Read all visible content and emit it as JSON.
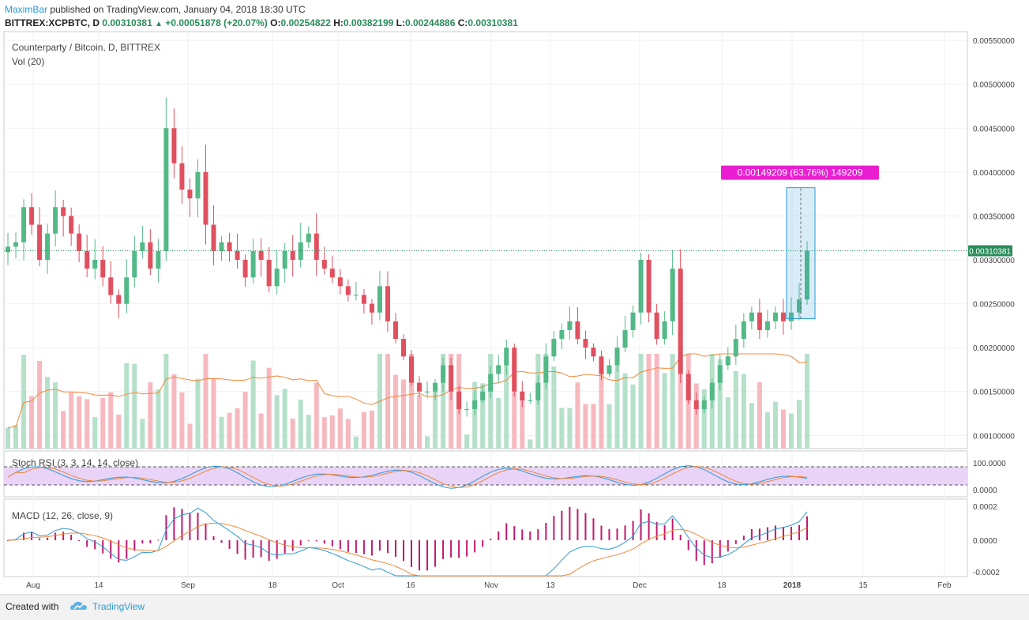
{
  "header": {
    "author": "MaximBar",
    "published": "published on TradingView.com, January 04, 2018 18:30 UTC",
    "symbol": "BITTREX:XCPBTC, D",
    "last": "0.00310381",
    "change": "+0.00051878 (+20.07%)",
    "o_label": "O:",
    "o_value": "0.00254822",
    "h_label": "H:",
    "h_value": "0.00382199",
    "l_label": "L:",
    "l_value": "0.00244886",
    "c_label": "C:",
    "c_value": "0.00310381"
  },
  "chart_data": [
    {
      "type": "candlestick",
      "title": "Counterparty / Bitcoin, D, BITTREX",
      "volume_label": "Vol (20)",
      "x_ticks": [
        "Aug",
        "14",
        "Sep",
        "18",
        "Oct",
        "16",
        "Nov",
        "13",
        "Dec",
        "18",
        "2018",
        "15",
        "Feb"
      ],
      "y_ticks": [
        "0.00550000",
        "0.00500000",
        "0.00450000",
        "0.00400000",
        "0.00350000",
        "0.00300000",
        "0.00250000",
        "0.00200000",
        "0.00150000",
        "0.00100000"
      ],
      "ylim": [
        0.00085,
        0.0056
      ],
      "last_price_label": "0.00310381",
      "measure_label": "0.00149209 (63.76%) 149209",
      "measure_range": [
        0.00233,
        0.00382199
      ],
      "close_series": [
        0.00315,
        0.0032,
        0.0036,
        0.0034,
        0.003,
        0.0033,
        0.0036,
        0.0035,
        0.0033,
        0.0031,
        0.0029,
        0.003,
        0.0028,
        0.0026,
        0.0025,
        0.0028,
        0.0031,
        0.0032,
        0.0029,
        0.0031,
        0.0045,
        0.0041,
        0.0038,
        0.0037,
        0.004,
        0.0034,
        0.0031,
        0.0032,
        0.0031,
        0.003,
        0.0028,
        0.0031,
        0.003,
        0.0027,
        0.0029,
        0.0031,
        0.003,
        0.0032,
        0.0033,
        0.003,
        0.0029,
        0.0028,
        0.0027,
        0.0026,
        0.0026,
        0.0025,
        0.0024,
        0.0027,
        0.0023,
        0.0021,
        0.0019,
        0.0016,
        0.0015,
        0.0015,
        0.0016,
        0.0018,
        0.0015,
        0.0013,
        0.0013,
        0.0014,
        0.0015,
        0.0017,
        0.0018,
        0.002,
        0.0015,
        0.0014,
        0.0014,
        0.0016,
        0.0019,
        0.0021,
        0.0022,
        0.0023,
        0.0021,
        0.002,
        0.0019,
        0.0017,
        0.0018,
        0.002,
        0.0022,
        0.0024,
        0.003,
        0.0024,
        0.0021,
        0.0023,
        0.0029,
        0.0017,
        0.0014,
        0.0013,
        0.0014,
        0.0016,
        0.0018,
        0.0019,
        0.0021,
        0.0023,
        0.0024,
        0.0022,
        0.0023,
        0.0024,
        0.0023,
        0.0024,
        0.00254822,
        0.00310381
      ],
      "y2_label": "Stoch RSI (3, 3, 14, 14, close)",
      "y2_ticks": [
        "100.0000",
        "0.0000"
      ],
      "y3_label": "MACD (12, 26, close, 9)",
      "y3_ticks": [
        "0.0002",
        "0.0000",
        "-0.0002"
      ]
    }
  ],
  "footer": {
    "made_with": "Created with",
    "brand": "TradingView"
  },
  "colors": {
    "up": "#52b987",
    "down": "#e0505f",
    "vol_up": "#b5e0c9",
    "vol_down": "#f6b9bf",
    "ma": "#f0883a",
    "stoch_k": "#2a9bd9",
    "stoch_d": "#f0883a",
    "stoch_band": "#e9d3f6",
    "macd": "#2a9bd9",
    "signal": "#f0883a",
    "hist": "#c2186b",
    "measure": "#e91ed1",
    "last": "#2a8c5a"
  }
}
